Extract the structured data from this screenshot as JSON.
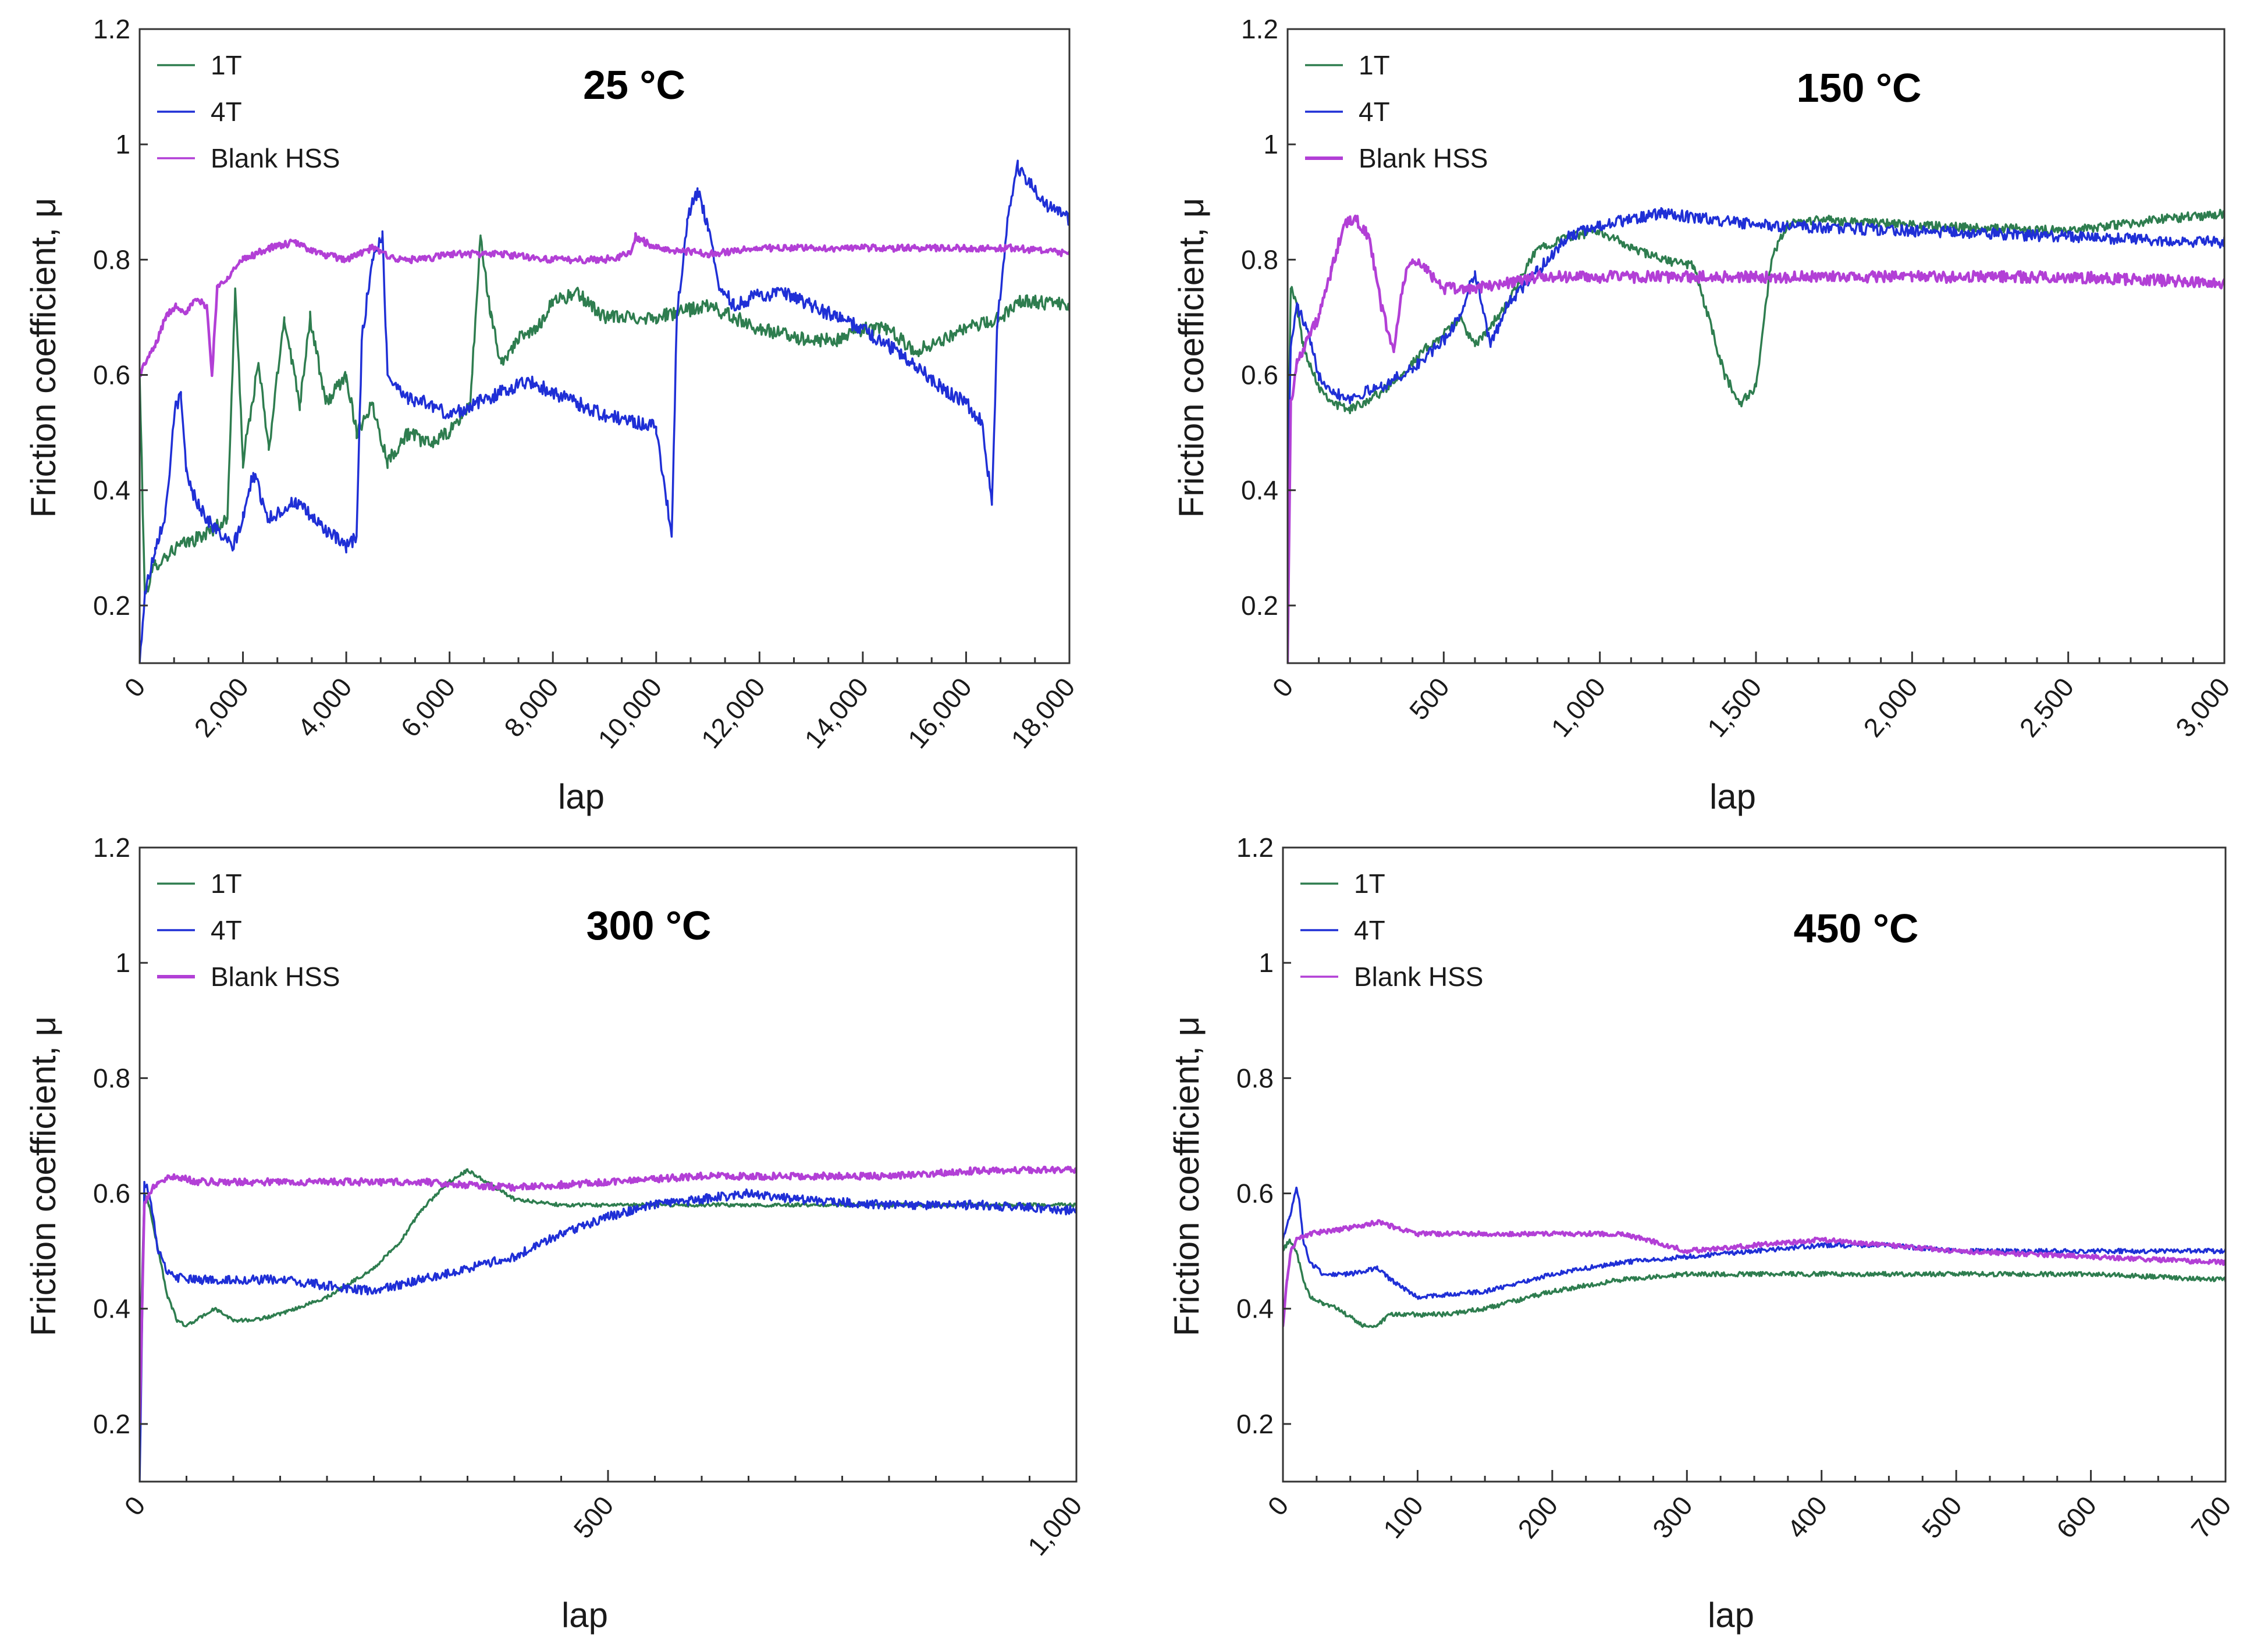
{
  "colors": {
    "1T": "#2e7d4f",
    "4T": "#1f2fd6",
    "Blank HSS": "#b23fd6"
  },
  "chart_data": [
    {
      "type": "line",
      "title": "25 °C",
      "xlabel": "lap",
      "ylabel": "Friction coefficient, μ",
      "xlim": [
        0,
        18000
      ],
      "ylim": [
        0.1,
        1.2
      ],
      "xticks": [
        0,
        2000,
        4000,
        6000,
        8000,
        10000,
        12000,
        14000,
        16000,
        18000
      ],
      "xtick_labels": [
        "0",
        "2,000",
        "4,000",
        "6,000",
        "8,000",
        "10,000",
        "12,000",
        "14,000",
        "16,000",
        "18,000"
      ],
      "yticks": [
        0.2,
        0.4,
        0.6,
        0.8,
        1,
        1.2
      ],
      "ytick_labels": [
        "0.2",
        "0.4",
        "0.6",
        "0.8",
        "1",
        "1.2"
      ],
      "legend": "top-left",
      "series": [
        {
          "name": "1T",
          "noise": 0.012,
          "x": [
            0,
            100,
            300,
            700,
            1200,
            1700,
            1850,
            2000,
            2300,
            2500,
            2800,
            3100,
            3300,
            3600,
            4000,
            4200,
            4500,
            4800,
            5200,
            5600,
            6000,
            6400,
            6600,
            6800,
            7000,
            7300,
            7700,
            8000,
            8500,
            9000,
            9500,
            10000,
            11000,
            12000,
            13000,
            13500,
            14000,
            14500,
            15000,
            15500,
            16000,
            16400,
            16700,
            17000,
            18000
          ],
          "y": [
            0.6,
            0.22,
            0.27,
            0.3,
            0.32,
            0.35,
            0.75,
            0.45,
            0.62,
            0.47,
            0.7,
            0.55,
            0.7,
            0.55,
            0.6,
            0.5,
            0.55,
            0.45,
            0.5,
            0.48,
            0.5,
            0.55,
            0.84,
            0.7,
            0.62,
            0.66,
            0.68,
            0.73,
            0.74,
            0.7,
            0.7,
            0.7,
            0.72,
            0.68,
            0.66,
            0.66,
            0.68,
            0.68,
            0.64,
            0.66,
            0.68,
            0.69,
            0.7,
            0.73,
            0.72
          ]
        },
        {
          "name": "4T",
          "noise": 0.012,
          "x": [
            0,
            100,
            300,
            500,
            700,
            800,
            900,
            1000,
            1300,
            1800,
            2000,
            2200,
            2500,
            3000,
            3500,
            4000,
            4200,
            4300,
            4500,
            4700,
            4800,
            5200,
            5600,
            6000,
            6500,
            7000,
            7500,
            8000,
            8500,
            9000,
            9500,
            10000,
            10300,
            10400,
            10600,
            10800,
            11000,
            11200,
            11500,
            12000,
            12500,
            13000,
            13500,
            14000,
            14500,
            15000,
            15500,
            16000,
            16300,
            16500,
            16600,
            16800,
            17000,
            17500,
            18000
          ],
          "y": [
            0.1,
            0.22,
            0.3,
            0.36,
            0.55,
            0.56,
            0.44,
            0.4,
            0.35,
            0.3,
            0.35,
            0.43,
            0.35,
            0.38,
            0.34,
            0.3,
            0.32,
            0.66,
            0.8,
            0.84,
            0.6,
            0.56,
            0.55,
            0.53,
            0.55,
            0.57,
            0.59,
            0.57,
            0.55,
            0.53,
            0.52,
            0.51,
            0.32,
            0.7,
            0.87,
            0.92,
            0.86,
            0.76,
            0.72,
            0.74,
            0.74,
            0.72,
            0.7,
            0.68,
            0.65,
            0.62,
            0.58,
            0.55,
            0.52,
            0.38,
            0.68,
            0.87,
            0.96,
            0.9,
            0.87
          ]
        },
        {
          "name": "Blank HSS",
          "noise": 0.006,
          "x": [
            0,
            100,
            300,
            500,
            700,
            900,
            1100,
            1300,
            1400,
            1500,
            1700,
            2000,
            2500,
            3000,
            3500,
            4000,
            4500,
            5000,
            5500,
            6000,
            7000,
            8000,
            9000,
            9500,
            9600,
            10000,
            11000,
            12000,
            13000,
            14000,
            15000,
            16000,
            17000,
            18000
          ],
          "y": [
            0.6,
            0.62,
            0.65,
            0.7,
            0.72,
            0.71,
            0.73,
            0.72,
            0.6,
            0.75,
            0.77,
            0.8,
            0.82,
            0.83,
            0.81,
            0.8,
            0.82,
            0.8,
            0.8,
            0.81,
            0.81,
            0.8,
            0.8,
            0.81,
            0.84,
            0.82,
            0.81,
            0.82,
            0.82,
            0.82,
            0.82,
            0.82,
            0.82,
            0.81
          ]
        }
      ]
    },
    {
      "type": "line",
      "title": "150 °C",
      "xlabel": "lap",
      "ylabel": "Friction coefficient, μ",
      "xlim": [
        0,
        3000
      ],
      "ylim": [
        0.1,
        1.2
      ],
      "xticks": [
        0,
        500,
        1000,
        1500,
        2000,
        2500,
        3000
      ],
      "xtick_labels": [
        "0",
        "500",
        "1,000",
        "1,500",
        "2,000",
        "2,500",
        "3,000"
      ],
      "yticks": [
        0.2,
        0.4,
        0.6,
        0.8,
        1,
        1.2
      ],
      "ytick_labels": [
        "0.2",
        "0.4",
        "0.6",
        "0.8",
        "1",
        "1.2"
      ],
      "legend": "top-left",
      "series": [
        {
          "name": "1T",
          "noise": 0.008,
          "x": [
            0,
            10,
            30,
            50,
            100,
            150,
            200,
            300,
            400,
            450,
            500,
            550,
            600,
            700,
            800,
            900,
            1000,
            1100,
            1200,
            1300,
            1400,
            1450,
            1500,
            1550,
            1600,
            1700,
            2000,
            2500,
            2800,
            3000
          ],
          "y": [
            0.4,
            0.75,
            0.72,
            0.65,
            0.58,
            0.55,
            0.54,
            0.57,
            0.62,
            0.65,
            0.67,
            0.7,
            0.65,
            0.72,
            0.82,
            0.84,
            0.85,
            0.82,
            0.8,
            0.79,
            0.6,
            0.55,
            0.58,
            0.8,
            0.86,
            0.87,
            0.86,
            0.85,
            0.87,
            0.88
          ]
        },
        {
          "name": "4T",
          "noise": 0.01,
          "x": [
            0,
            10,
            30,
            60,
            100,
            150,
            200,
            300,
            400,
            500,
            550,
            600,
            650,
            700,
            800,
            900,
            1000,
            1100,
            1200,
            1500,
            2000,
            2500,
            3000
          ],
          "y": [
            0.35,
            0.65,
            0.72,
            0.68,
            0.6,
            0.57,
            0.56,
            0.58,
            0.61,
            0.66,
            0.7,
            0.78,
            0.65,
            0.72,
            0.78,
            0.84,
            0.86,
            0.87,
            0.88,
            0.86,
            0.85,
            0.84,
            0.83
          ]
        },
        {
          "name": "Blank HSS",
          "noise": 0.01,
          "x": [
            0,
            10,
            30,
            60,
            100,
            140,
            180,
            220,
            260,
            300,
            340,
            370,
            400,
            450,
            500,
            600,
            800,
            1000,
            1500,
            2000,
            2500,
            3000
          ],
          "y": [
            0.1,
            0.55,
            0.62,
            0.66,
            0.7,
            0.78,
            0.86,
            0.87,
            0.84,
            0.72,
            0.64,
            0.76,
            0.8,
            0.78,
            0.75,
            0.75,
            0.77,
            0.77,
            0.77,
            0.77,
            0.77,
            0.76
          ]
        }
      ]
    },
    {
      "type": "line",
      "title": "300 °C",
      "xlabel": "lap",
      "ylabel": "Friction coefficient, μ",
      "xlim": [
        0,
        1000
      ],
      "ylim": [
        0.1,
        1.2
      ],
      "xticks": [
        0,
        500,
        1000
      ],
      "xtick_labels": [
        "0",
        "500",
        "1,000"
      ],
      "yticks": [
        0.2,
        0.4,
        0.6,
        0.8,
        1,
        1.2
      ],
      "ytick_labels": [
        "0.2",
        "0.4",
        "0.6",
        "0.8",
        "1",
        "1.2"
      ],
      "legend": "top-left",
      "series": [
        {
          "name": "1T",
          "noise": 0.003,
          "x": [
            0,
            5,
            10,
            20,
            30,
            40,
            50,
            60,
            80,
            100,
            120,
            150,
            200,
            250,
            280,
            300,
            330,
            350,
            370,
            400,
            450,
            500,
            600,
            700,
            800,
            900,
            1000
          ],
          "y": [
            0.3,
            0.6,
            0.58,
            0.5,
            0.42,
            0.38,
            0.37,
            0.38,
            0.4,
            0.38,
            0.38,
            0.39,
            0.42,
            0.47,
            0.52,
            0.57,
            0.62,
            0.64,
            0.62,
            0.59,
            0.58,
            0.58,
            0.58,
            0.58,
            0.58,
            0.58,
            0.58
          ]
        },
        {
          "name": "4T",
          "noise": 0.008,
          "x": [
            0,
            5,
            10,
            20,
            30,
            50,
            80,
            100,
            150,
            200,
            250,
            300,
            350,
            400,
            450,
            500,
            550,
            600,
            650,
            700,
            800,
            900,
            1000
          ],
          "y": [
            0.1,
            0.62,
            0.6,
            0.5,
            0.46,
            0.45,
            0.45,
            0.45,
            0.45,
            0.44,
            0.43,
            0.45,
            0.47,
            0.49,
            0.53,
            0.56,
            0.58,
            0.59,
            0.6,
            0.59,
            0.58,
            0.58,
            0.57
          ]
        },
        {
          "name": "Blank HSS",
          "noise": 0.006,
          "x": [
            0,
            5,
            10,
            20,
            40,
            60,
            100,
            200,
            300,
            400,
            500,
            600,
            700,
            800,
            900,
            1000
          ],
          "y": [
            0.2,
            0.58,
            0.6,
            0.62,
            0.63,
            0.62,
            0.62,
            0.62,
            0.62,
            0.61,
            0.62,
            0.63,
            0.63,
            0.63,
            0.64,
            0.64
          ]
        }
      ]
    },
    {
      "type": "line",
      "title": "450 °C",
      "xlabel": "lap",
      "ylabel": "Friction coefficient, μ",
      "xlim": [
        0,
        700
      ],
      "ylim": [
        0.1,
        1.2
      ],
      "xticks": [
        0,
        100,
        200,
        300,
        400,
        500,
        600,
        700
      ],
      "xtick_labels": [
        "0",
        "100",
        "200",
        "300",
        "400",
        "500",
        "600",
        "700"
      ],
      "yticks": [
        0.2,
        0.4,
        0.6,
        0.8,
        1,
        1.2
      ],
      "ytick_labels": [
        "0.2",
        "0.4",
        "0.6",
        "0.8",
        "1",
        "1.2"
      ],
      "legend": "top-left",
      "series": [
        {
          "name": "1T",
          "noise": 0.004,
          "x": [
            0,
            5,
            10,
            15,
            20,
            30,
            40,
            60,
            70,
            80,
            100,
            120,
            150,
            200,
            250,
            300,
            350,
            400,
            450,
            500,
            600,
            700
          ],
          "y": [
            0.5,
            0.52,
            0.5,
            0.45,
            0.42,
            0.41,
            0.4,
            0.37,
            0.37,
            0.39,
            0.39,
            0.39,
            0.4,
            0.43,
            0.45,
            0.46,
            0.46,
            0.46,
            0.46,
            0.46,
            0.46,
            0.45
          ]
        },
        {
          "name": "4T",
          "noise": 0.004,
          "x": [
            0,
            5,
            10,
            12,
            15,
            20,
            30,
            50,
            70,
            80,
            100,
            150,
            200,
            250,
            300,
            350,
            400,
            450,
            500,
            600,
            700
          ],
          "y": [
            0.52,
            0.56,
            0.61,
            0.59,
            0.52,
            0.48,
            0.46,
            0.46,
            0.47,
            0.45,
            0.42,
            0.43,
            0.46,
            0.48,
            0.49,
            0.5,
            0.51,
            0.51,
            0.5,
            0.5,
            0.5
          ]
        },
        {
          "name": "Blank HSS",
          "noise": 0.004,
          "x": [
            0,
            3,
            6,
            10,
            20,
            50,
            70,
            100,
            150,
            200,
            250,
            270,
            300,
            350,
            400,
            450,
            500,
            600,
            700
          ],
          "y": [
            0.37,
            0.45,
            0.5,
            0.52,
            0.53,
            0.54,
            0.55,
            0.53,
            0.53,
            0.53,
            0.53,
            0.52,
            0.5,
            0.51,
            0.52,
            0.51,
            0.5,
            0.49,
            0.48
          ]
        }
      ]
    }
  ]
}
